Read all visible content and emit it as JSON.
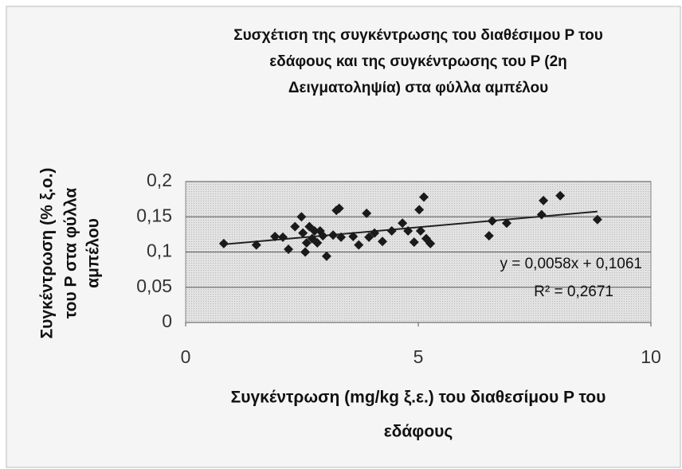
{
  "chart_data": {
    "type": "scatter",
    "title": [
      "Συσχέτιση της συγκέντρωσης του διαθέσιμου  P του",
      "εδάφους και της συγκέντρωσης του P (2η",
      "Δειγματοληψία) στα φύλλα αμπέλου"
    ],
    "x_label": [
      "Συγκέντρωση (mg/kg ξ.ε.) του διαθεσίμου P του",
      "εδάφους"
    ],
    "y_label": [
      "Συγκέντρωση (% ξ.ο.)",
      "του P στα φύλλα",
      "αμπέλου"
    ],
    "x": [
      0.82,
      1.52,
      1.92,
      2.09,
      2.21,
      2.35,
      2.49,
      2.52,
      2.57,
      2.6,
      2.66,
      2.72,
      2.77,
      2.83,
      2.89,
      2.95,
      3.03,
      3.17,
      3.24,
      3.3,
      3.34,
      3.6,
      3.72,
      3.89,
      3.94,
      4.06,
      4.23,
      4.43,
      4.66,
      4.78,
      4.91,
      5.02,
      5.05,
      5.12,
      5.17,
      5.26,
      6.52,
      6.59,
      6.9,
      7.65,
      7.69,
      8.05,
      8.85
    ],
    "values": [
      0.112,
      0.11,
      0.122,
      0.121,
      0.104,
      0.136,
      0.15,
      0.127,
      0.1,
      0.113,
      0.136,
      0.119,
      0.13,
      0.113,
      0.13,
      0.123,
      0.094,
      0.124,
      0.159,
      0.162,
      0.121,
      0.122,
      0.11,
      0.155,
      0.121,
      0.127,
      0.115,
      0.13,
      0.141,
      0.13,
      0.114,
      0.16,
      0.13,
      0.178,
      0.119,
      0.112,
      0.123,
      0.144,
      0.141,
      0.153,
      0.173,
      0.18,
      0.146
    ],
    "color": "#1a1a1a",
    "trendline": {
      "slope": 0.0058,
      "intercept": 0.1061,
      "equation": "y = 0,0058x + 0,1061",
      "r2": "R² = 0,2671"
    },
    "xlim": [
      0,
      10
    ],
    "xticks": [
      0,
      5,
      10
    ],
    "ylim": [
      0,
      0.2
    ],
    "yticks": [
      0,
      {
        "value": 0.05,
        "label": "0,05"
      },
      {
        "value": 0.1,
        "label": "0,1"
      },
      {
        "value": 0.15,
        "label": "0,15"
      },
      {
        "value": 0.2,
        "label": "0,2"
      }
    ],
    "grid": true
  }
}
